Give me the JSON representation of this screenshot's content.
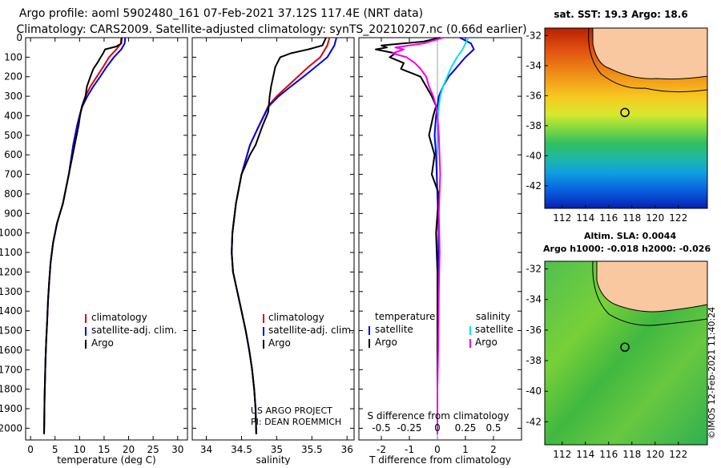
{
  "header": {
    "line1": "Argo profile: aoml 5902480_161 07-Feb-2021 37.12S 117.4E (NRT data)",
    "line2": "Climatology: CARS2009. Satellite-adjusted climatology: synTS_20210207.nc (0.66d earlier)"
  },
  "colors": {
    "climatology": "#e00000",
    "satellite_adj": "#0000e0",
    "argo": "#000000",
    "satellite_salinity": "#00e0f0",
    "argo_salinity": "#f000f0",
    "land": "#f9c8a0"
  },
  "depth_axis": {
    "ticks": [
      0,
      100,
      200,
      300,
      400,
      500,
      600,
      700,
      800,
      900,
      1000,
      1100,
      1200,
      1300,
      1400,
      1500,
      1600,
      1700,
      1800,
      1900,
      2000
    ],
    "range": [
      0,
      2060
    ]
  },
  "chart_data": [
    {
      "type": "line",
      "name": "temperature-panel",
      "xlabel": "temperature (deg C)",
      "ylabel": "",
      "xlim": [
        -1,
        32
      ],
      "ylim": [
        2060,
        0
      ],
      "xticks": [
        0,
        5,
        10,
        15,
        20,
        25,
        30
      ],
      "legend": {
        "placement": "bottom-right",
        "entries": [
          "climatology",
          "satellite-adj. clim.",
          "Argo"
        ]
      },
      "series": [
        {
          "name": "climatology",
          "color": "#e00000",
          "x": [
            18.5,
            18.4,
            17.5,
            16,
            14.8,
            13.5,
            12.2,
            11.2,
            10.5,
            10,
            9.5,
            8.7,
            7.8,
            6.6,
            5.4,
            4.6,
            4.1,
            3.8,
            3.55,
            3.4,
            3.2,
            3.05,
            2.95,
            2.85,
            2.8,
            2.75
          ],
          "y": [
            0,
            30,
            60,
            100,
            150,
            200,
            250,
            300,
            350,
            400,
            450,
            550,
            700,
            850,
            950,
            1050,
            1150,
            1250,
            1350,
            1450,
            1550,
            1650,
            1750,
            1850,
            1950,
            2030
          ]
        },
        {
          "name": "satellite-adj. clim.",
          "color": "#0000e0",
          "x": [
            19.3,
            19.2,
            18.5,
            17,
            15.5,
            14.2,
            12.8,
            11.6,
            10.6,
            10,
            9.5,
            8.7,
            7.8,
            6.6,
            5.4,
            4.6,
            4.1,
            3.8,
            3.55,
            3.4,
            3.2,
            3.05,
            2.95,
            2.85,
            2.8,
            2.75
          ],
          "y": [
            0,
            30,
            60,
            100,
            150,
            200,
            250,
            300,
            350,
            400,
            450,
            550,
            700,
            850,
            950,
            1050,
            1150,
            1250,
            1350,
            1450,
            1550,
            1650,
            1750,
            1850,
            1950,
            2030
          ]
        },
        {
          "name": "Argo",
          "color": "#000000",
          "x": [
            18.6,
            18.5,
            17.5,
            15.2,
            14.8,
            14.3,
            13.6,
            12.8,
            12.2,
            11.5,
            11.2,
            10.5,
            10.1,
            9.8,
            9.4,
            8.6,
            7.8,
            6.6,
            5.4,
            4.6,
            4.1,
            3.8,
            3.55,
            3.4,
            3.2,
            3.05,
            2.95,
            2.85,
            2.8,
            2.75
          ],
          "y": [
            0,
            30,
            45,
            60,
            80,
            100,
            130,
            160,
            200,
            250,
            300,
            350,
            400,
            450,
            500,
            600,
            700,
            850,
            950,
            1050,
            1150,
            1250,
            1350,
            1450,
            1550,
            1650,
            1750,
            1850,
            1950,
            2030
          ]
        }
      ]
    },
    {
      "type": "line",
      "name": "salinity-panel",
      "xlabel": "salinity",
      "ylabel": "",
      "xlim": [
        33.8,
        36.1
      ],
      "ylim": [
        2060,
        0
      ],
      "xticks": [
        34,
        34.5,
        35,
        35.5,
        36
      ],
      "legend": {
        "placement": "bottom-right",
        "entries": [
          "climatology",
          "satellite-adj. clim.",
          "Argo"
        ]
      },
      "annotations": [
        "US ARGO PROJECT",
        "PI: DEAN ROEMMICH"
      ],
      "series": [
        {
          "name": "climatology",
          "color": "#e00000",
          "x": [
            35.75,
            35.72,
            35.62,
            35.45,
            35.3,
            35.15,
            35.0,
            34.88,
            34.75,
            34.62,
            34.5,
            34.42,
            34.37,
            34.36,
            34.38,
            34.44,
            34.5,
            34.56,
            34.61,
            34.65,
            34.68,
            34.7,
            34.71
          ],
          "y": [
            0,
            40,
            100,
            150,
            200,
            250,
            300,
            350,
            450,
            550,
            700,
            850,
            1000,
            1100,
            1200,
            1300,
            1400,
            1500,
            1600,
            1700,
            1800,
            1900,
            2030
          ]
        },
        {
          "name": "satellite-adj. clim.",
          "color": "#0000e0",
          "x": [
            35.85,
            35.82,
            35.72,
            35.55,
            35.38,
            35.2,
            35.03,
            34.89,
            34.75,
            34.62,
            34.5,
            34.42,
            34.37,
            34.36,
            34.38,
            34.44,
            34.5,
            34.56,
            34.61,
            34.65,
            34.68,
            34.7,
            34.71
          ],
          "y": [
            0,
            40,
            100,
            150,
            200,
            250,
            300,
            350,
            450,
            550,
            700,
            850,
            1000,
            1100,
            1200,
            1300,
            1400,
            1500,
            1600,
            1700,
            1800,
            1900,
            2030
          ]
        },
        {
          "name": "Argo",
          "color": "#000000",
          "x": [
            35.7,
            35.65,
            35.45,
            35.2,
            35.05,
            34.98,
            34.95,
            34.92,
            34.9,
            34.88,
            34.8,
            34.7,
            34.62,
            34.5,
            34.42,
            34.37,
            34.36,
            34.38,
            34.44,
            34.5,
            34.56,
            34.61,
            34.65,
            34.68,
            34.7,
            34.71
          ],
          "y": [
            0,
            40,
            60,
            80,
            100,
            150,
            200,
            250,
            300,
            380,
            450,
            550,
            600,
            700,
            850,
            1000,
            1100,
            1200,
            1300,
            1400,
            1500,
            1600,
            1700,
            1800,
            1900,
            2030
          ]
        }
      ]
    },
    {
      "type": "line",
      "name": "difference-panel",
      "xlabel": "T difference from climatology",
      "xlabel_top": "S difference from climatology",
      "ylabel": "",
      "xlim": [
        -2.8,
        3.0
      ],
      "ylim": [
        2060,
        0
      ],
      "xticks": [
        -2,
        -1,
        0,
        1,
        2
      ],
      "xticks_top": [
        -0.5,
        -0.25,
        0,
        0.25,
        0.5
      ],
      "legend": {
        "placement": "bottom",
        "left_title": "temperature",
        "right_title": "salinity",
        "left_entries": [
          "satellite",
          "Argo"
        ],
        "right_entries": [
          "satellite",
          "Argo"
        ]
      },
      "series": [
        {
          "name": "satellite",
          "group": "temperature",
          "color": "#0000e0",
          "x": [
            0.8,
            1.2,
            1.3,
            1.0,
            0.7,
            0.4,
            0.2,
            0.05,
            0,
            -0.05,
            -0.1,
            -0.05,
            0,
            0.05,
            0.02,
            0,
            0,
            0,
            0,
            0
          ],
          "y": [
            0,
            30,
            60,
            100,
            150,
            200,
            250,
            300,
            350,
            400,
            500,
            600,
            800,
            1000,
            1200,
            1400,
            1600,
            1800,
            1950,
            2030
          ]
        },
        {
          "name": "Argo",
          "group": "temperature",
          "color": "#000000",
          "x": [
            0.1,
            -0.5,
            -2.0,
            -1.8,
            -2.2,
            -1.5,
            -1.7,
            -1.2,
            -1.3,
            -0.6,
            -0.4,
            -0.2,
            -0.05,
            -0.15,
            -0.3,
            -0.1,
            -0.2,
            0.05,
            -0.05,
            0,
            0,
            0,
            0
          ],
          "y": [
            0,
            20,
            40,
            50,
            60,
            80,
            100,
            130,
            160,
            200,
            250,
            300,
            350,
            400,
            500,
            600,
            700,
            800,
            1000,
            1200,
            1500,
            1800,
            2030
          ]
        },
        {
          "name": "satellite",
          "group": "salinity",
          "color": "#00e0f0",
          "x": [
            1.1,
            1.0,
            0.9,
            0.7,
            0.5,
            0.35,
            0.2,
            0.1,
            0.05,
            0.02,
            0,
            0
          ],
          "y": [
            0,
            30,
            60,
            100,
            150,
            200,
            250,
            300,
            350,
            400,
            500,
            600
          ]
        },
        {
          "name": "Argo",
          "group": "salinity",
          "color": "#f000f0",
          "x": [
            0.2,
            -0.5,
            -1.5,
            -1.2,
            -1.6,
            -1.1,
            -0.8,
            -0.6,
            -0.4,
            -0.3,
            -0.15,
            -0.05,
            0,
            0.05,
            0.1,
            0.05,
            0.08,
            0.05,
            0.03,
            0,
            0
          ],
          "y": [
            0,
            30,
            50,
            60,
            80,
            100,
            130,
            160,
            200,
            250,
            300,
            350,
            400,
            500,
            700,
            900,
            1100,
            1300,
            1600,
            1800,
            2030
          ]
        }
      ]
    },
    {
      "type": "heatmap",
      "name": "sst-map",
      "title": "sat. SST: 19.3 Argo: 18.6",
      "xlim": [
        110.5,
        124.5
      ],
      "ylim": [
        -43.5,
        -31.5
      ],
      "xticks": [
        112,
        114,
        116,
        118,
        120,
        122
      ],
      "yticks": [
        -32,
        -34,
        -36,
        -38,
        -40,
        -42
      ],
      "marker": {
        "lon": 117.4,
        "lat": -37.12
      }
    },
    {
      "type": "heatmap",
      "name": "sla-map",
      "title": "Altim. SLA: 0.0044",
      "subtitle": "Argo h1000: -0.018 h2000: -0.026",
      "xlim": [
        110.5,
        124.5
      ],
      "ylim": [
        -43.5,
        -31.5
      ],
      "xticks": [
        112,
        114,
        116,
        118,
        120,
        122
      ],
      "yticks": [
        -32,
        -34,
        -36,
        -38,
        -40,
        -42
      ],
      "marker": {
        "lon": 117.4,
        "lat": -37.12
      }
    }
  ],
  "watermark": "©IMOS 12-Feb-2021 11:40:24"
}
